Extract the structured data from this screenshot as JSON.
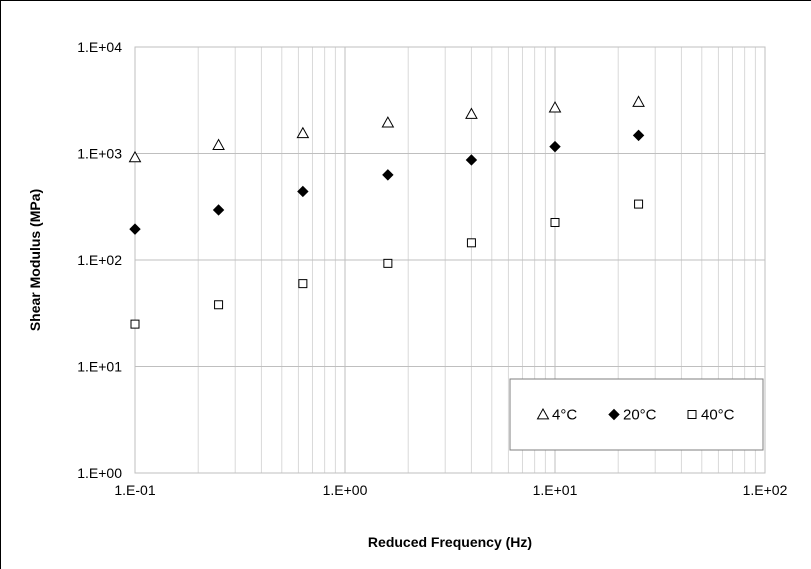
{
  "chart_data": {
    "type": "scatter",
    "title": "",
    "xlabel": "Reduced Frequency (Hz)",
    "ylabel": "Shear Modulus (MPa)",
    "x_scale": "log",
    "y_scale": "log",
    "xlim": [
      0.1,
      100
    ],
    "ylim": [
      1,
      10000
    ],
    "x_ticks": [
      "1.E-01",
      "1.E+00",
      "1.E+01",
      "1.E+02"
    ],
    "y_ticks": [
      "1.E+00",
      "1.E+01",
      "1.E+02",
      "1.E+03",
      "1.E+04"
    ],
    "grid": true,
    "legend_position": "bottom-right",
    "series": [
      {
        "name": "4°C",
        "marker": "open-triangle",
        "x": [
          0.1,
          0.25,
          0.63,
          1.6,
          4.0,
          10.0,
          25.0
        ],
        "y": [
          920,
          1200,
          1550,
          1950,
          2350,
          2700,
          3050
        ]
      },
      {
        "name": "20°C",
        "marker": "filled-diamond",
        "x": [
          0.1,
          0.25,
          0.63,
          1.6,
          4.0,
          10.0,
          25.0
        ],
        "y": [
          195,
          295,
          440,
          630,
          870,
          1160,
          1480
        ]
      },
      {
        "name": "40°C",
        "marker": "open-square",
        "x": [
          0.1,
          0.25,
          0.63,
          1.6,
          4.0,
          10.0,
          25.0
        ],
        "y": [
          25,
          38,
          60,
          93,
          145,
          225,
          335
        ]
      }
    ]
  }
}
